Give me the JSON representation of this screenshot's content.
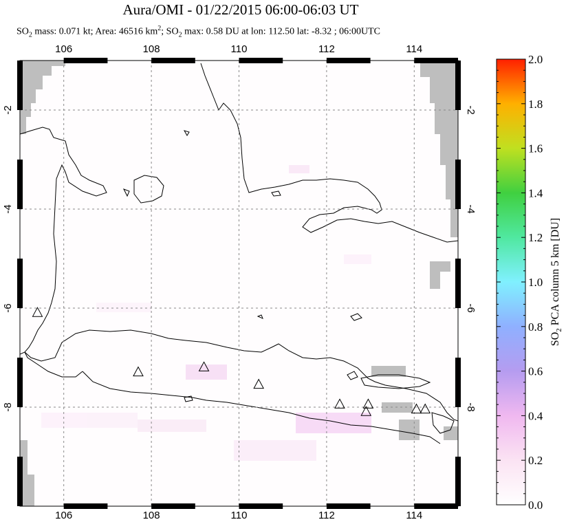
{
  "header": {
    "title": "Aura/OMI - 01/22/2015 06:00-06:03 UT",
    "subtitle_prefix": "SO",
    "subtitle_sub": "2",
    "subtitle_part1": " mass: 0.071 kt; Area: 46516 km",
    "subtitle_sup": "2",
    "subtitle_part2": "; SO",
    "subtitle_sub2": "2",
    "subtitle_part3": " max: 0.58 DU at lon: 112.50 lat: -8.32 ; 06:00UTC"
  },
  "map": {
    "lon_range": [
      105,
      115
    ],
    "lat_range": [
      -10,
      -1
    ],
    "lon_ticks": [
      "106",
      "108",
      "110",
      "112",
      "114"
    ],
    "lat_ticks": [
      "-2",
      "-4",
      "-6",
      "-8"
    ],
    "grid": "dashed",
    "colors": {
      "land_outline": "#000000",
      "no_data": "#bebebe",
      "volcano_marker": "#000000"
    },
    "volcanoes": [
      {
        "lon": 105.4,
        "lat": -6.1
      },
      {
        "lon": 107.7,
        "lat": -7.3
      },
      {
        "lon": 109.2,
        "lat": -7.2
      },
      {
        "lon": 110.45,
        "lat": -7.55
      },
      {
        "lon": 112.3,
        "lat": -7.95
      },
      {
        "lon": 112.95,
        "lat": -7.95
      },
      {
        "lon": 112.9,
        "lat": -8.1
      },
      {
        "lon": 114.05,
        "lat": -8.05
      },
      {
        "lon": 114.25,
        "lat": -8.05
      }
    ]
  },
  "colorbar": {
    "title": "SO2 PCA column 5 km [DU]",
    "title_main": "SO",
    "title_sub": "2",
    "title_rest": " PCA column 5 km [DU]",
    "labels": [
      "0.0",
      "0.2",
      "0.4",
      "0.6",
      "0.8",
      "1.0",
      "1.2",
      "1.4",
      "1.6",
      "1.8",
      "2.0"
    ],
    "range": [
      0,
      2.0
    ]
  }
}
